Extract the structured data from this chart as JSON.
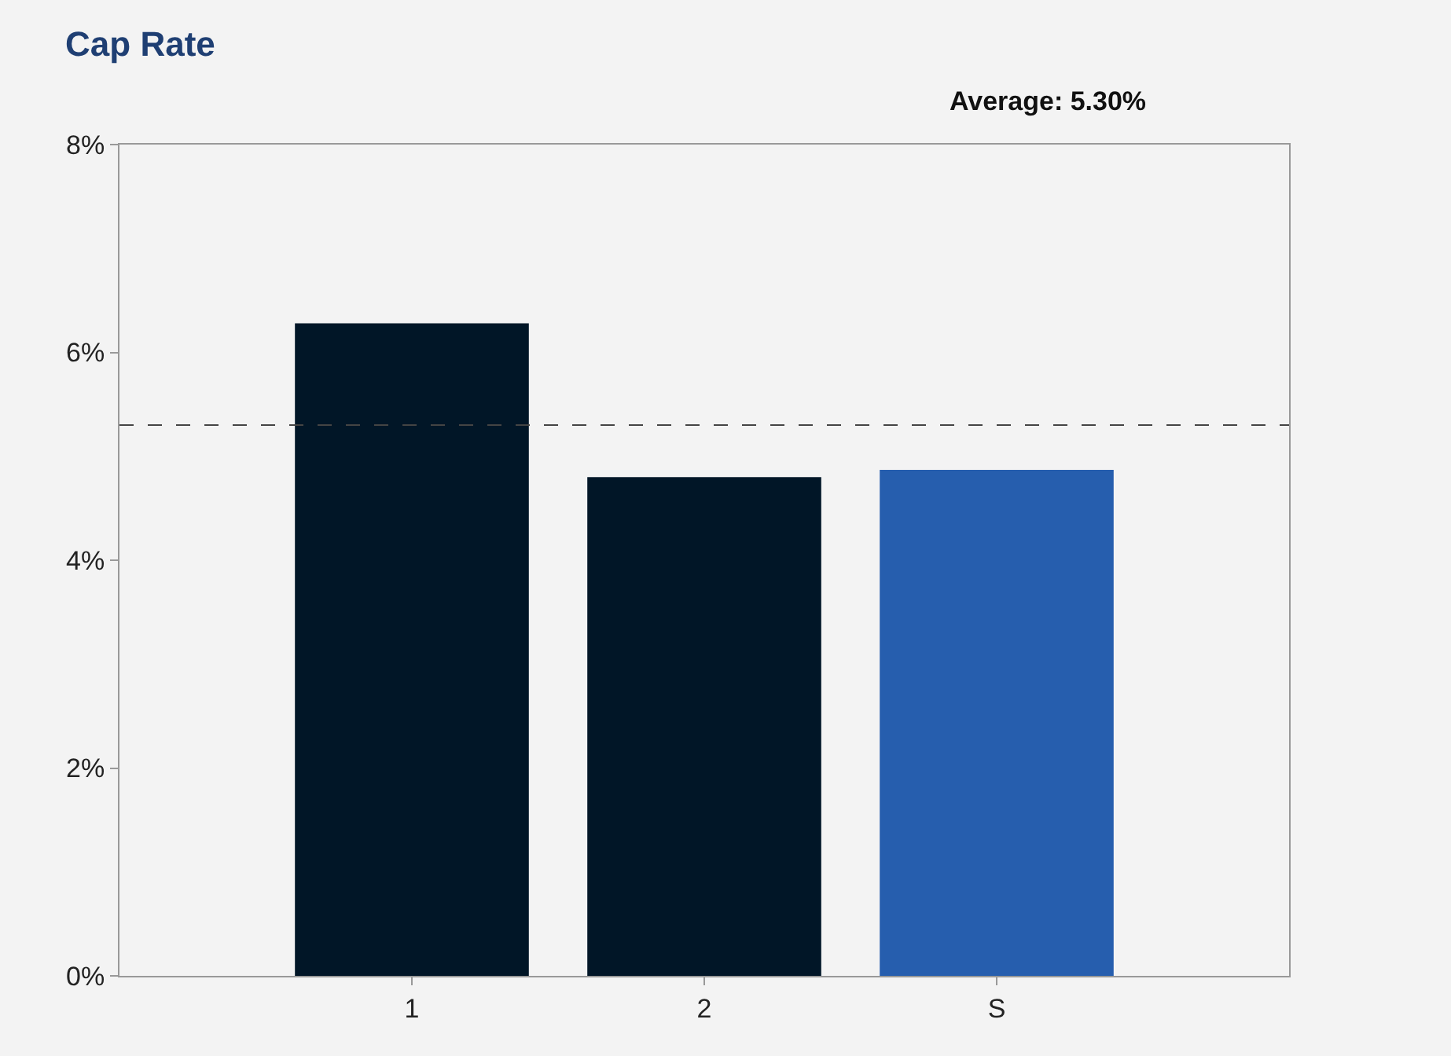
{
  "chart_data": {
    "type": "bar",
    "title": "Cap Rate",
    "categories": [
      "1",
      "2",
      "S"
    ],
    "values": [
      6.28,
      4.8,
      4.87
    ],
    "colors": [
      "#011627",
      "#011627",
      "#265eae"
    ],
    "ylim": [
      0,
      8
    ],
    "yticks": [
      {
        "value": 0,
        "label": "0%"
      },
      {
        "value": 2,
        "label": "2%"
      },
      {
        "value": 4,
        "label": "4%"
      },
      {
        "value": 6,
        "label": "6%"
      },
      {
        "value": 8,
        "label": "8%"
      }
    ],
    "ref_lines": [
      {
        "axis": "y",
        "value": 5.3,
        "color": "#444444",
        "line_style": "dashed"
      }
    ],
    "annotations": [
      "Average: 5.30%"
    ],
    "grid": false
  }
}
